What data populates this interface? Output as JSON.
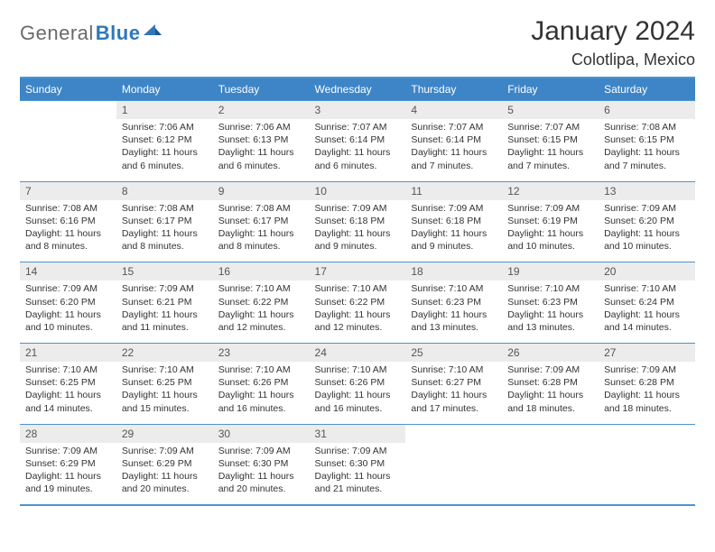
{
  "logo": {
    "text1": "General",
    "text2": "Blue"
  },
  "title": "January 2024",
  "location": "Colotlipa, Mexico",
  "colors": {
    "header_bg": "#3d85c6",
    "header_text": "#ffffff",
    "border": "#4c93cf",
    "daynum_bg": "#ececec",
    "text": "#333333",
    "logo_gray": "#6a6a6a",
    "logo_blue": "#2f78b8"
  },
  "day_headers": [
    "Sunday",
    "Monday",
    "Tuesday",
    "Wednesday",
    "Thursday",
    "Friday",
    "Saturday"
  ],
  "weeks": [
    {
      "nums": [
        "",
        "1",
        "2",
        "3",
        "4",
        "5",
        "6"
      ],
      "cells": [
        null,
        {
          "sr": "Sunrise: 7:06 AM",
          "ss": "Sunset: 6:12 PM",
          "d1": "Daylight: 11 hours",
          "d2": "and 6 minutes."
        },
        {
          "sr": "Sunrise: 7:06 AM",
          "ss": "Sunset: 6:13 PM",
          "d1": "Daylight: 11 hours",
          "d2": "and 6 minutes."
        },
        {
          "sr": "Sunrise: 7:07 AM",
          "ss": "Sunset: 6:14 PM",
          "d1": "Daylight: 11 hours",
          "d2": "and 6 minutes."
        },
        {
          "sr": "Sunrise: 7:07 AM",
          "ss": "Sunset: 6:14 PM",
          "d1": "Daylight: 11 hours",
          "d2": "and 7 minutes."
        },
        {
          "sr": "Sunrise: 7:07 AM",
          "ss": "Sunset: 6:15 PM",
          "d1": "Daylight: 11 hours",
          "d2": "and 7 minutes."
        },
        {
          "sr": "Sunrise: 7:08 AM",
          "ss": "Sunset: 6:15 PM",
          "d1": "Daylight: 11 hours",
          "d2": "and 7 minutes."
        }
      ]
    },
    {
      "nums": [
        "7",
        "8",
        "9",
        "10",
        "11",
        "12",
        "13"
      ],
      "cells": [
        {
          "sr": "Sunrise: 7:08 AM",
          "ss": "Sunset: 6:16 PM",
          "d1": "Daylight: 11 hours",
          "d2": "and 8 minutes."
        },
        {
          "sr": "Sunrise: 7:08 AM",
          "ss": "Sunset: 6:17 PM",
          "d1": "Daylight: 11 hours",
          "d2": "and 8 minutes."
        },
        {
          "sr": "Sunrise: 7:08 AM",
          "ss": "Sunset: 6:17 PM",
          "d1": "Daylight: 11 hours",
          "d2": "and 8 minutes."
        },
        {
          "sr": "Sunrise: 7:09 AM",
          "ss": "Sunset: 6:18 PM",
          "d1": "Daylight: 11 hours",
          "d2": "and 9 minutes."
        },
        {
          "sr": "Sunrise: 7:09 AM",
          "ss": "Sunset: 6:18 PM",
          "d1": "Daylight: 11 hours",
          "d2": "and 9 minutes."
        },
        {
          "sr": "Sunrise: 7:09 AM",
          "ss": "Sunset: 6:19 PM",
          "d1": "Daylight: 11 hours",
          "d2": "and 10 minutes."
        },
        {
          "sr": "Sunrise: 7:09 AM",
          "ss": "Sunset: 6:20 PM",
          "d1": "Daylight: 11 hours",
          "d2": "and 10 minutes."
        }
      ]
    },
    {
      "nums": [
        "14",
        "15",
        "16",
        "17",
        "18",
        "19",
        "20"
      ],
      "cells": [
        {
          "sr": "Sunrise: 7:09 AM",
          "ss": "Sunset: 6:20 PM",
          "d1": "Daylight: 11 hours",
          "d2": "and 10 minutes."
        },
        {
          "sr": "Sunrise: 7:09 AM",
          "ss": "Sunset: 6:21 PM",
          "d1": "Daylight: 11 hours",
          "d2": "and 11 minutes."
        },
        {
          "sr": "Sunrise: 7:10 AM",
          "ss": "Sunset: 6:22 PM",
          "d1": "Daylight: 11 hours",
          "d2": "and 12 minutes."
        },
        {
          "sr": "Sunrise: 7:10 AM",
          "ss": "Sunset: 6:22 PM",
          "d1": "Daylight: 11 hours",
          "d2": "and 12 minutes."
        },
        {
          "sr": "Sunrise: 7:10 AM",
          "ss": "Sunset: 6:23 PM",
          "d1": "Daylight: 11 hours",
          "d2": "and 13 minutes."
        },
        {
          "sr": "Sunrise: 7:10 AM",
          "ss": "Sunset: 6:23 PM",
          "d1": "Daylight: 11 hours",
          "d2": "and 13 minutes."
        },
        {
          "sr": "Sunrise: 7:10 AM",
          "ss": "Sunset: 6:24 PM",
          "d1": "Daylight: 11 hours",
          "d2": "and 14 minutes."
        }
      ]
    },
    {
      "nums": [
        "21",
        "22",
        "23",
        "24",
        "25",
        "26",
        "27"
      ],
      "cells": [
        {
          "sr": "Sunrise: 7:10 AM",
          "ss": "Sunset: 6:25 PM",
          "d1": "Daylight: 11 hours",
          "d2": "and 14 minutes."
        },
        {
          "sr": "Sunrise: 7:10 AM",
          "ss": "Sunset: 6:25 PM",
          "d1": "Daylight: 11 hours",
          "d2": "and 15 minutes."
        },
        {
          "sr": "Sunrise: 7:10 AM",
          "ss": "Sunset: 6:26 PM",
          "d1": "Daylight: 11 hours",
          "d2": "and 16 minutes."
        },
        {
          "sr": "Sunrise: 7:10 AM",
          "ss": "Sunset: 6:26 PM",
          "d1": "Daylight: 11 hours",
          "d2": "and 16 minutes."
        },
        {
          "sr": "Sunrise: 7:10 AM",
          "ss": "Sunset: 6:27 PM",
          "d1": "Daylight: 11 hours",
          "d2": "and 17 minutes."
        },
        {
          "sr": "Sunrise: 7:09 AM",
          "ss": "Sunset: 6:28 PM",
          "d1": "Daylight: 11 hours",
          "d2": "and 18 minutes."
        },
        {
          "sr": "Sunrise: 7:09 AM",
          "ss": "Sunset: 6:28 PM",
          "d1": "Daylight: 11 hours",
          "d2": "and 18 minutes."
        }
      ]
    },
    {
      "nums": [
        "28",
        "29",
        "30",
        "31",
        "",
        "",
        ""
      ],
      "cells": [
        {
          "sr": "Sunrise: 7:09 AM",
          "ss": "Sunset: 6:29 PM",
          "d1": "Daylight: 11 hours",
          "d2": "and 19 minutes."
        },
        {
          "sr": "Sunrise: 7:09 AM",
          "ss": "Sunset: 6:29 PM",
          "d1": "Daylight: 11 hours",
          "d2": "and 20 minutes."
        },
        {
          "sr": "Sunrise: 7:09 AM",
          "ss": "Sunset: 6:30 PM",
          "d1": "Daylight: 11 hours",
          "d2": "and 20 minutes."
        },
        {
          "sr": "Sunrise: 7:09 AM",
          "ss": "Sunset: 6:30 PM",
          "d1": "Daylight: 11 hours",
          "d2": "and 21 minutes."
        },
        null,
        null,
        null
      ]
    }
  ]
}
